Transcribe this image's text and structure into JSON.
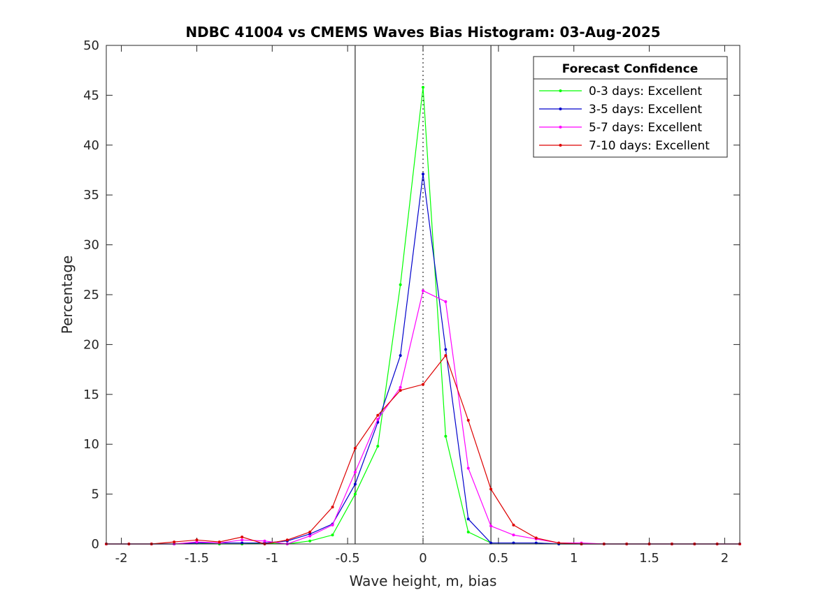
{
  "chart_data": {
    "type": "line",
    "title": "NDBC 41004 vs CMEMS Waves Bias Histogram: 03-Aug-2025",
    "xlabel": "Wave height, m, bias",
    "ylabel": "Percentage",
    "xlim": [
      -2.1,
      2.1
    ],
    "ylim": [
      0,
      50
    ],
    "xticks": [
      -2,
      -1.5,
      -1,
      -0.5,
      0,
      0.5,
      1,
      1.5,
      2
    ],
    "xtick_labels": [
      "-2",
      "-1.5",
      "-1",
      "-0.5",
      "0",
      "0.5",
      "1",
      "1.5",
      "2"
    ],
    "yticks": [
      0,
      5,
      10,
      15,
      20,
      25,
      30,
      35,
      40,
      45,
      50
    ],
    "ytick_labels": [
      "0",
      "5",
      "10",
      "15",
      "20",
      "25",
      "30",
      "35",
      "40",
      "45",
      "50"
    ],
    "vertical_lines": [
      {
        "x": -0.45,
        "style": "solid"
      },
      {
        "x": 0,
        "style": "dotted"
      },
      {
        "x": 0.45,
        "style": "solid"
      }
    ],
    "legend": {
      "title": "Forecast Confidence",
      "placement": "top-right"
    },
    "x": [
      -2.1,
      -1.95,
      -1.8,
      -1.65,
      -1.5,
      -1.35,
      -1.2,
      -1.05,
      -0.9,
      -0.75,
      -0.6,
      -0.45,
      -0.3,
      -0.15,
      0,
      0.15,
      0.3,
      0.45,
      0.6,
      0.75,
      0.9,
      1.05,
      1.2,
      1.35,
      1.5,
      1.65,
      1.8,
      1.95,
      2.1
    ],
    "series": [
      {
        "name": "0-3 days: Excellent",
        "color": "#00ff00",
        "values": [
          0,
          0,
          0,
          0,
          0.1,
          0,
          0,
          0.1,
          0,
          0.3,
          0.9,
          5.0,
          9.8,
          26.0,
          45.8,
          10.8,
          1.2,
          0.1,
          0.1,
          0.1,
          0,
          0,
          0,
          0,
          0,
          0,
          0,
          0,
          0
        ]
      },
      {
        "name": "3-5 days: Excellent",
        "color": "#0000cc",
        "values": [
          0,
          0,
          0,
          0,
          0.1,
          0.1,
          0.1,
          0.1,
          0.3,
          1.0,
          2.0,
          6.0,
          12.2,
          18.9,
          37.1,
          19.5,
          2.5,
          0.1,
          0.1,
          0.1,
          0,
          0,
          0,
          0,
          0,
          0,
          0,
          0,
          0
        ]
      },
      {
        "name": "5-7 days: Excellent",
        "color": "#ff00ff",
        "values": [
          0,
          0,
          0,
          0,
          0.2,
          0.1,
          0.4,
          0.3,
          0,
          0.8,
          1.9,
          7.2,
          12.5,
          15.7,
          25.4,
          24.3,
          7.6,
          1.8,
          0.9,
          0.5,
          0.1,
          0.1,
          0,
          0,
          0,
          0,
          0,
          0,
          0
        ]
      },
      {
        "name": "7-10 days: Excellent",
        "color": "#dd0000",
        "values": [
          0,
          0,
          0,
          0.2,
          0.4,
          0.2,
          0.7,
          0,
          0.4,
          1.2,
          3.7,
          9.6,
          12.9,
          15.4,
          16.0,
          18.9,
          12.4,
          5.5,
          1.9,
          0.6,
          0.1,
          0,
          0,
          0,
          0,
          0,
          0,
          0,
          0
        ]
      }
    ]
  }
}
